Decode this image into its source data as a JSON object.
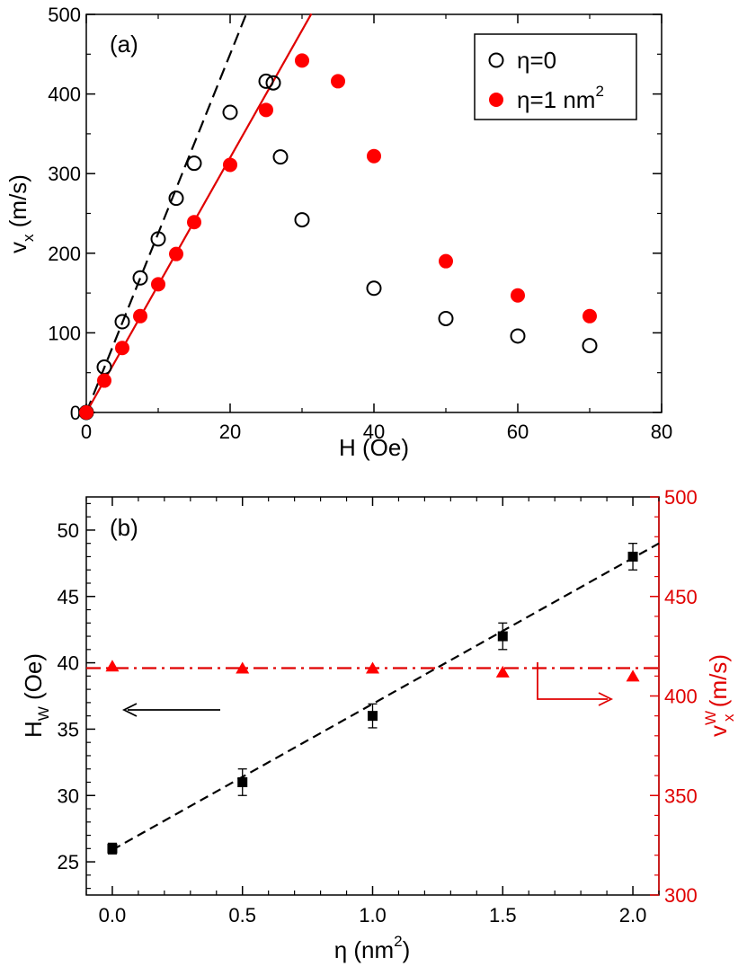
{
  "chart_data": [
    {
      "type": "scatter",
      "panel_label": "(a)",
      "xlabel": "H (Oe)",
      "ylabel": {
        "main": "v",
        "sub": "x",
        "unit": " (m/s)"
      },
      "xlim": [
        0,
        80
      ],
      "ylim": [
        0,
        500
      ],
      "xticks": [
        "0",
        "20",
        "40",
        "60",
        "80"
      ],
      "yticks": [
        "0",
        "100",
        "200",
        "300",
        "400",
        "500"
      ],
      "legend_position": "top-right",
      "series": [
        {
          "name": "η=0",
          "legend_text": "η=0",
          "marker": "open-circle",
          "color": "#000000",
          "x": [
            0,
            2.5,
            5,
            7.5,
            10,
            12.5,
            15,
            20,
            25,
            26,
            27,
            30,
            40,
            50,
            60,
            70
          ],
          "y": [
            0,
            57,
            114,
            169,
            218,
            269,
            313,
            377,
            416,
            414,
            321,
            242,
            156,
            118,
            96,
            84
          ]
        },
        {
          "name": "η=1 nm²",
          "legend_text": "η=1 nm",
          "legend_sup": "2",
          "marker": "filled-circle",
          "color": "#ff0000",
          "x": [
            0,
            2.5,
            5,
            7.5,
            10,
            12.5,
            15,
            20,
            25,
            30,
            35,
            40,
            50,
            60,
            70
          ],
          "y": [
            0,
            40,
            81,
            121,
            161,
            199,
            239,
            311,
            380,
            442,
            416,
            322,
            190,
            147,
            121
          ]
        }
      ],
      "fit_lines": [
        {
          "style": "dashed",
          "color": "#000000",
          "slope": 22.5,
          "x_range": [
            0,
            22.3
          ]
        },
        {
          "style": "solid",
          "color": "#e00000",
          "slope": 16.0,
          "x_range": [
            0,
            31.3
          ]
        }
      ]
    },
    {
      "type": "scatter",
      "panel_label": "(b)",
      "xlabel": {
        "main": "η (nm",
        "sup": "2",
        "end": ")"
      },
      "ylabel_left": {
        "main": "H",
        "sub": "W",
        "unit": " (Oe)"
      },
      "ylabel_right": {
        "main": "v",
        "sub": "x",
        "sup": "W",
        "unit": " (m/s)"
      },
      "xlim": [
        -0.1,
        2.1
      ],
      "ylim_left": [
        22.5,
        52.5
      ],
      "ylim_right": [
        300,
        500
      ],
      "xticks": [
        "0.0",
        "0.5",
        "1.0",
        "1.5",
        "2.0"
      ],
      "yticks_left": [
        "25",
        "30",
        "35",
        "40",
        "45",
        "50"
      ],
      "yticks_right": [
        "300",
        "350",
        "400",
        "450",
        "500"
      ],
      "series": [
        {
          "name": "H_W",
          "axis": "left",
          "marker": "filled-square",
          "color": "#000000",
          "x": [
            0.0,
            0.5,
            1.0,
            1.5,
            2.0
          ],
          "y": [
            26.0,
            31.0,
            36.0,
            42.0,
            48.0
          ],
          "yerr": [
            0.4,
            1.0,
            0.9,
            1.0,
            1.0
          ]
        },
        {
          "name": "v_x^W",
          "axis": "right",
          "marker": "filled-triangle",
          "color": "#ff0000",
          "x": [
            0.0,
            0.5,
            1.0,
            1.5,
            2.0
          ],
          "y": [
            415,
            414,
            414,
            412,
            410
          ]
        }
      ],
      "fit_lines": [
        {
          "style": "dashed",
          "color": "#000000",
          "axis": "left",
          "slope": 11.0,
          "intercept": 25.9,
          "x_range": [
            0.0,
            2.1
          ]
        },
        {
          "style": "dash-dot",
          "color": "#e00000",
          "axis": "right",
          "slope": 0,
          "intercept": 414,
          "x_range": [
            -0.1,
            2.1
          ]
        }
      ],
      "annotations": [
        {
          "type": "arrow",
          "direction": "left",
          "color": "#000000",
          "meaning": "points to left axis"
        },
        {
          "type": "arrow",
          "direction": "right",
          "color": "#e00000",
          "meaning": "points to right axis"
        }
      ]
    }
  ]
}
